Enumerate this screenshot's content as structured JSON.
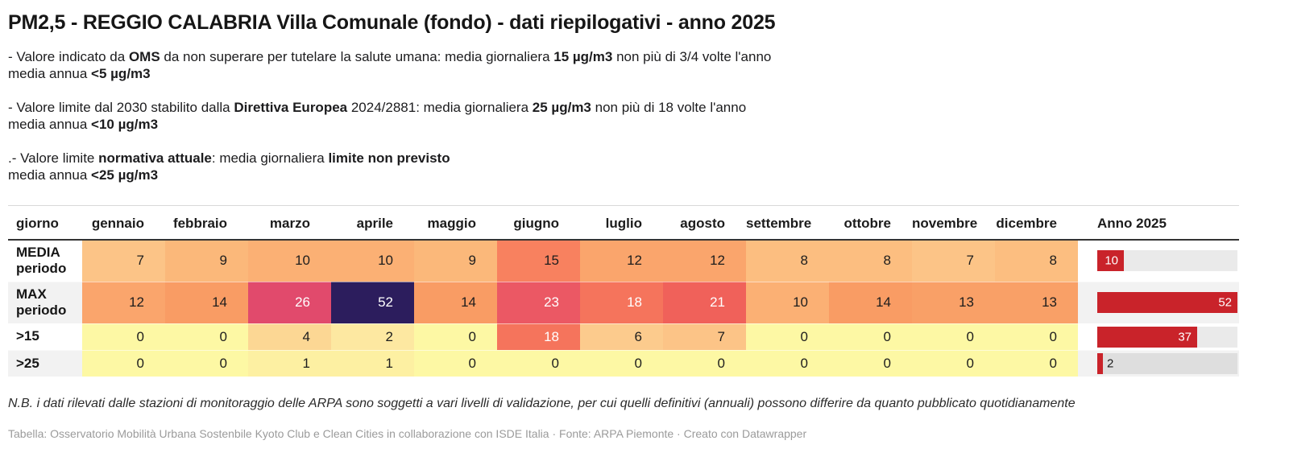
{
  "title": "PM2,5 - REGGIO CALABRIA Villa Comunale (fondo) - dati riepilogativi - anno 2025",
  "notes": [
    [
      [
        {
          "t": "- Valore indicato da "
        },
        {
          "t": "OMS",
          "b": 1
        },
        {
          "t": " da non superare per tutelare la salute umana: media giornaliera "
        },
        {
          "t": "15 µg/m3",
          "b": 1
        },
        {
          "t": " non più di 3/4 volte l'anno"
        }
      ],
      [
        {
          "t": "media annua "
        },
        {
          "t": "<5 µg/m3",
          "b": 1
        }
      ]
    ],
    [
      [
        {
          "t": "- Valore limite dal 2030 stabilito dalla "
        },
        {
          "t": "Direttiva Europea",
          "b": 1
        },
        {
          "t": " 2024/2881: media giornaliera "
        },
        {
          "t": "25 µg/m3",
          "b": 1
        },
        {
          "t": " non più di 18 volte l'anno"
        }
      ],
      [
        {
          "t": "media annua "
        },
        {
          "t": "<10 µg/m3",
          "b": 1
        }
      ]
    ],
    [
      [
        {
          "t": ".- Valore limite "
        },
        {
          "t": "normativa attuale",
          "b": 1
        },
        {
          "t": ": media giornaliera "
        },
        {
          "t": "limite non previsto",
          "b": 1
        }
      ],
      [
        {
          "t": "media annua "
        },
        {
          "t": "<25 µg/m3",
          "b": 1
        }
      ]
    ]
  ],
  "chart_data": {
    "type": "heatmap",
    "title": "PM2,5 - REGGIO CALABRIA Villa Comunale (fondo) - dati riepilogativi - anno 2025",
    "columns": [
      "giorno",
      "gennaio",
      "febbraio",
      "marzo",
      "aprile",
      "maggio",
      "giugno",
      "luglio",
      "agosto",
      "settembre",
      "ottobre",
      "novembre",
      "dicembre",
      "Anno 2025"
    ],
    "rows": [
      {
        "label_lines": [
          "MEDIA",
          "periodo"
        ],
        "values": [
          7,
          9,
          10,
          10,
          9,
          15,
          12,
          12,
          8,
          8,
          7,
          8
        ],
        "anno": 10
      },
      {
        "label_lines": [
          "MAX",
          "periodo"
        ],
        "values": [
          12,
          14,
          26,
          52,
          14,
          23,
          18,
          21,
          10,
          14,
          13,
          13
        ],
        "anno": 52
      },
      {
        "label_lines": [
          ">15"
        ],
        "values": [
          0,
          0,
          4,
          2,
          0,
          18,
          6,
          7,
          0,
          0,
          0,
          0
        ],
        "anno": 37
      },
      {
        "label_lines": [
          ">25"
        ],
        "values": [
          0,
          0,
          1,
          1,
          0,
          0,
          0,
          0,
          0,
          0,
          0,
          0
        ],
        "anno": 2
      }
    ],
    "anno_axis_max": 52,
    "legend": "none"
  },
  "colors": {
    "bar_red": "#c9232a",
    "cell_text_dark": "#1d1d1d",
    "cell_text_light": "#ffffff",
    "scale": {
      "0": "#fdf8a4",
      "1": "#fdf0a2",
      "2": "#fde8a1",
      "4": "#fcd794",
      "6": "#fccb8d",
      "7": "#fcc487",
      "8": "#fcbe80",
      "9": "#fbb87a",
      "10": "#fbb074",
      "12": "#faa56c",
      "13": "#f9a067",
      "14": "#f99c64",
      "15": "#f8815f",
      "18": "#f5745c",
      "21": "#f0615a",
      "23": "#eb5864",
      "26": "#e14a6c",
      "52": "#2c1d5d"
    },
    "white_text_values": [
      18,
      21,
      23,
      26,
      52
    ]
  },
  "footer": {
    "note": "N.B. i dati rilevati dalle stazioni di monitoraggio delle ARPA sono soggetti a vari livelli di validazione, per cui quelli definitivi (annuali) possono differire da quanto pubblicato quotidianamente",
    "source": "Tabella: Osservatorio Mobilità Urbana Sostenbile Kyoto Club e Clean Cities in collaborazione con ISDE Italia · Fonte: ARPA Piemonte · Creato con Datawrapper"
  }
}
